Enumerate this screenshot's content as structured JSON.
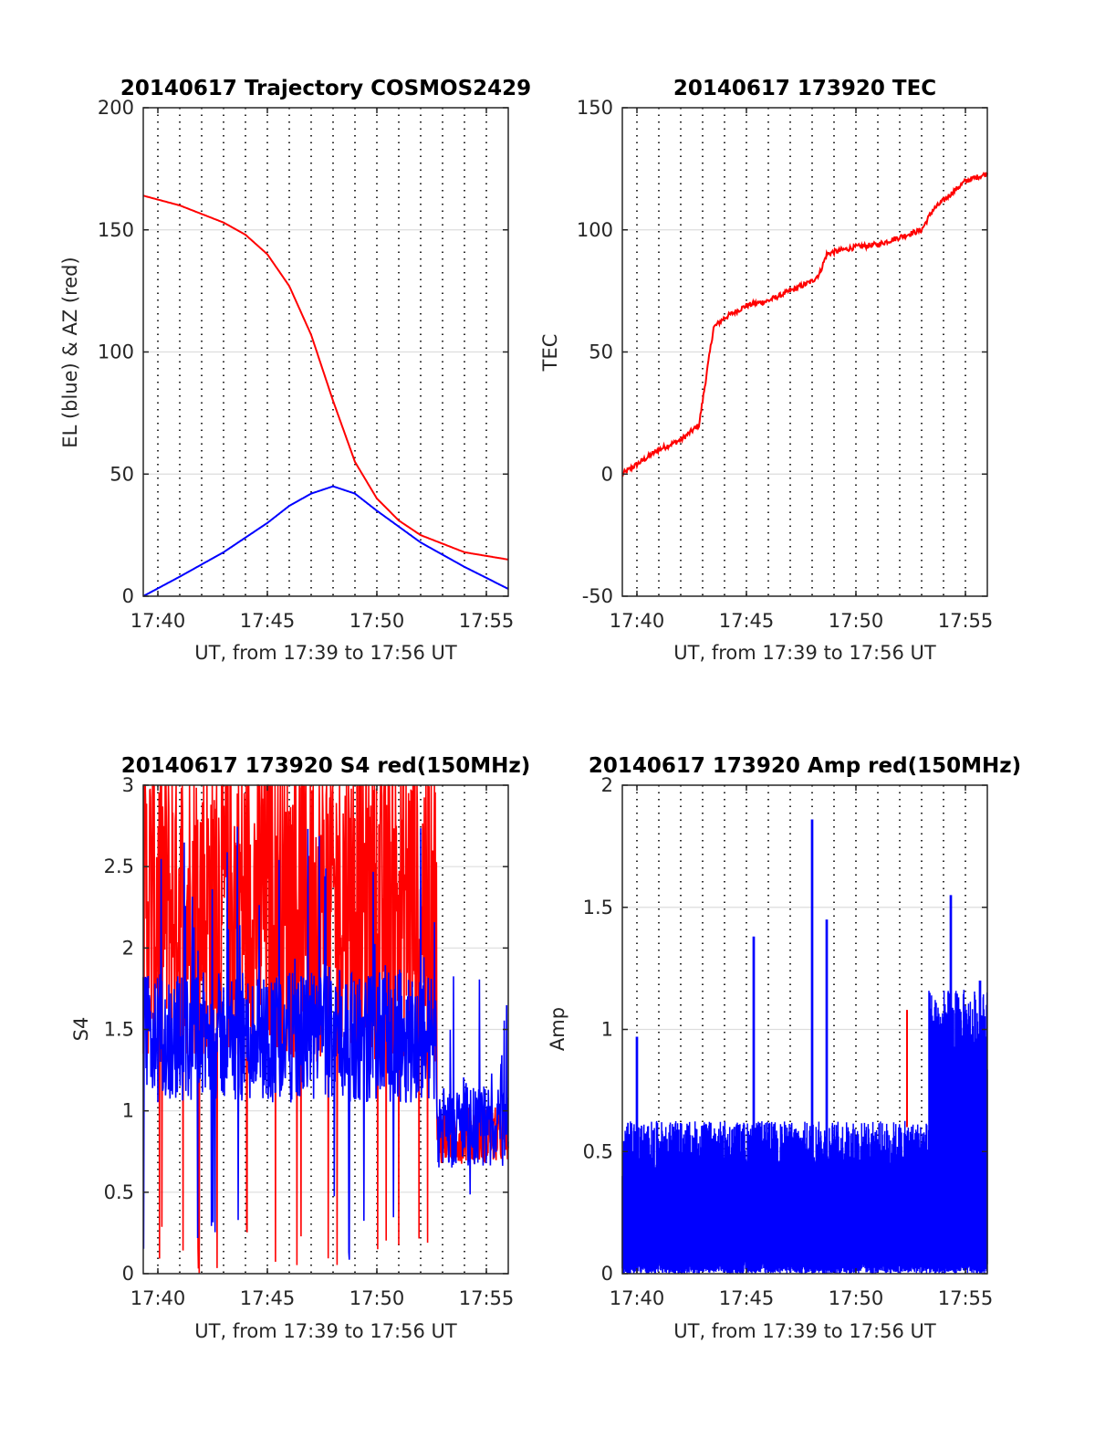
{
  "colors": {
    "red": "#ff0000",
    "blue": "#0000ff",
    "axis": "#262626",
    "grid": "#dddddd",
    "vgrid": "#000000"
  },
  "charts": [
    {
      "id": "trajectory",
      "title": "20140617 Trajectory COSMOS2429",
      "xlabel": "UT, from 17:39 to 17:56 UT",
      "ylabel": "EL (blue) & AZ (red)",
      "ylim": [
        0,
        200
      ],
      "yticks": [
        "0",
        "50",
        "100",
        "150",
        "200"
      ]
    },
    {
      "id": "tec",
      "title": "20140617 173920 TEC",
      "xlabel": "UT, from 17:39 to 17:56 UT",
      "ylabel": "TEC",
      "ylim": [
        -50,
        150
      ],
      "yticks": [
        "-50",
        "0",
        "50",
        "100",
        "150"
      ]
    },
    {
      "id": "s4",
      "title": "20140617 173920 S4 red(150MHz)",
      "xlabel": "UT, from 17:39 to 17:56 UT",
      "ylabel": "S4",
      "ylim": [
        0,
        3
      ],
      "yticks": [
        "0",
        "0.5",
        "1",
        "1.5",
        "2",
        "2.5",
        "3"
      ]
    },
    {
      "id": "amp",
      "title": "20140617 173920 Amp red(150MHz)",
      "xlabel": "UT, from 17:39 to 17:56 UT",
      "ylabel": "Amp",
      "ylim": [
        0,
        2
      ],
      "yticks": [
        "0",
        "0.5",
        "1",
        "1.5",
        "2"
      ]
    }
  ],
  "chart_data": [
    {
      "type": "line",
      "title": "20140617 Trajectory COSMOS2429",
      "xlabel": "UT, from 17:39 to 17:56 UT",
      "ylabel": "EL (blue) & AZ (red)",
      "xlim": [
        "17:39:20",
        "17:56"
      ],
      "ylim": [
        0,
        200
      ],
      "xticks": [
        "17:40",
        "17:45",
        "17:50",
        "17:55"
      ],
      "yticks": [
        0,
        50,
        100,
        150,
        200
      ],
      "grid": "horizontal solid, vertical dotted each minute",
      "series": [
        {
          "color": "blue",
          "x": [
            "17:39:20",
            "17:41",
            "17:43",
            "17:45",
            "17:46",
            "17:47",
            "17:48",
            "17:49",
            "17:50",
            "17:52",
            "17:54",
            "17:56"
          ],
          "values": [
            0,
            8,
            18,
            30,
            37,
            42,
            45,
            42,
            35,
            22,
            12,
            3
          ]
        },
        {
          "color": "red",
          "x": [
            "17:39:20",
            "17:41",
            "17:43",
            "17:44",
            "17:45",
            "17:46",
            "17:47",
            "17:48",
            "17:49",
            "17:50",
            "17:51",
            "17:52",
            "17:54",
            "17:56"
          ],
          "values": [
            164,
            160,
            153,
            148,
            140,
            127,
            107,
            80,
            55,
            40,
            31,
            25,
            18,
            15
          ]
        }
      ]
    },
    {
      "type": "line",
      "title": "20140617 173920 TEC",
      "xlabel": "UT, from 17:39 to 17:56 UT",
      "ylabel": "TEC",
      "xlim": [
        "17:39:20",
        "17:56"
      ],
      "ylim": [
        -50,
        150
      ],
      "xticks": [
        "17:40",
        "17:45",
        "17:50",
        "17:55"
      ],
      "yticks": [
        -50,
        0,
        50,
        100,
        150
      ],
      "series": [
        {
          "color": "red",
          "x": [
            "17:39:20",
            "17:40",
            "17:41",
            "17:42",
            "17:42:50",
            "17:43:10",
            "17:43:30",
            "17:44",
            "17:45",
            "17:46",
            "17:47",
            "17:48",
            "17:48:20",
            "17:48:40",
            "17:49",
            "17:50",
            "17:51",
            "17:52",
            "17:53",
            "17:53:30",
            "17:54",
            "17:55",
            "17:56"
          ],
          "values": [
            0,
            4,
            10,
            14,
            20,
            40,
            60,
            64,
            69,
            71,
            75,
            79,
            82,
            90,
            91,
            93,
            94,
            97,
            100,
            108,
            112,
            120,
            123
          ]
        }
      ]
    },
    {
      "type": "line",
      "title": "20140617 173920 S4 red(150MHz)",
      "xlabel": "UT, from 17:39 to 17:56 UT",
      "ylabel": "S4",
      "xlim": [
        "17:39:20",
        "17:56"
      ],
      "ylim": [
        0,
        3
      ],
      "xticks": [
        "17:40",
        "17:45",
        "17:50",
        "17:55"
      ],
      "yticks": [
        0,
        0.5,
        1,
        1.5,
        2,
        2.5,
        3
      ],
      "series": [
        {
          "color": "red",
          "x_range": [
            "17:39:20",
            "17:56"
          ],
          "typical_range": [
            0,
            3
          ],
          "note_points": [
            [
              "17:39:20",
              2.4
            ],
            [
              "17:45",
              2.9
            ],
            [
              "17:50",
              3.0
            ],
            [
              "17:53",
              1.0
            ],
            [
              "17:55",
              0.7
            ]
          ]
        },
        {
          "color": "blue",
          "x_range": [
            "17:39:20",
            "17:56"
          ],
          "typical_range": [
            0.5,
            2.5
          ],
          "note_points": [
            [
              "17:39:20",
              1.3
            ],
            [
              "17:45",
              1.5
            ],
            [
              "17:50",
              1.6
            ],
            [
              "17:53",
              1.1
            ],
            [
              "17:55",
              0.8
            ]
          ]
        }
      ]
    },
    {
      "type": "line",
      "title": "20140617 173920 Amp red(150MHz)",
      "xlabel": "UT, from 17:39 to 17:56 UT",
      "ylabel": "Amp",
      "xlim": [
        "17:39:20",
        "17:56"
      ],
      "ylim": [
        0,
        2
      ],
      "xticks": [
        "17:40",
        "17:45",
        "17:50",
        "17:55"
      ],
      "yticks": [
        0,
        0.5,
        1,
        1.5,
        2
      ],
      "series": [
        {
          "color": "blue",
          "x_range": [
            "17:39:20",
            "17:56"
          ],
          "typical_range": [
            0,
            0.6
          ],
          "peaks": [
            [
              "17:40",
              0.97
            ],
            [
              "17:45:20",
              1.38
            ],
            [
              "17:48",
              1.86
            ],
            [
              "17:48:40",
              1.45
            ],
            [
              "17:54:20",
              1.55
            ],
            [
              "17:55:40",
              1.2
            ]
          ]
        },
        {
          "color": "red",
          "peaks": [
            [
              "17:52:20",
              1.08
            ]
          ]
        }
      ]
    }
  ]
}
